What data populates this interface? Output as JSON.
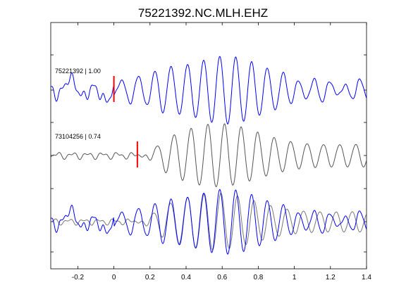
{
  "chart_data": {
    "type": "line",
    "title": "75221392.NC.MLH.EHZ",
    "xlabel": "",
    "ylabel": "",
    "xlim": [
      -0.35,
      1.4
    ],
    "xticks": [
      -0.2,
      0,
      0.2,
      0.4,
      0.6,
      0.8,
      1,
      1.2,
      1.4
    ],
    "xtick_labels": [
      "-0.2",
      "0",
      "0.2",
      "0.4",
      "0.6",
      "0.8",
      "1",
      "1.2",
      "1.4"
    ],
    "grid": false,
    "panels": [
      {
        "label": "75221392 | 1.00",
        "color": "#0000ff",
        "pick_time": 0.0,
        "pick_color": "#ff0000",
        "series": [
          {
            "name": "75221392",
            "color": "#0000ff",
            "scale": 1.0
          }
        ]
      },
      {
        "label": "73104256 | 0.74",
        "color": "#555555",
        "pick_time": 0.13,
        "pick_color": "#ff0000",
        "series": [
          {
            "name": "73104256",
            "color": "#555555",
            "scale": 1.0
          }
        ]
      },
      {
        "label": "",
        "overlay": true,
        "series": [
          {
            "name": "73104256",
            "color": "#777777",
            "scale": 0.9,
            "shift": -0.02
          },
          {
            "name": "75221392",
            "color": "#0000ff",
            "scale": 1.0,
            "shift": 0
          }
        ]
      }
    ]
  }
}
